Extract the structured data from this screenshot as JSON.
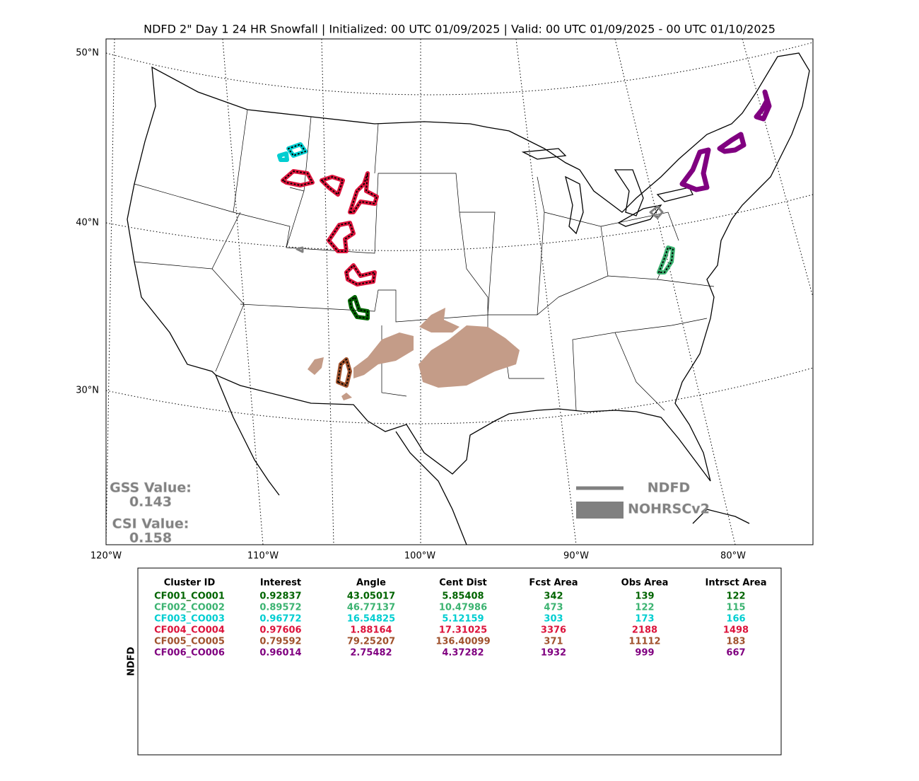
{
  "title": "NDFD 2\" Day 1 24 HR Snowfall | Initialized: 00 UTC 01/09/2025 | Valid: 00 UTC 01/09/2025 - 00 UTC 01/10/2025",
  "map": {
    "lat_labels": [
      "50°N",
      "40°N",
      "30°N"
    ],
    "lon_labels": [
      "120°W",
      "110°W",
      "100°W",
      "90°W",
      "80°W"
    ],
    "stats": {
      "gss_label": "GSS Value:",
      "gss_value": "0.143",
      "csi_label": "CSI Value:",
      "csi_value": "0.158"
    },
    "legend": [
      {
        "label": "NDFD",
        "color": "#808080"
      },
      {
        "label": "NOHRSCv2",
        "color": "#808080"
      }
    ]
  },
  "table": {
    "side_label": "NDFD",
    "header": [
      "Cluster ID",
      "Interest",
      "Angle",
      "Cent Dist",
      "Fcst Area",
      "Obs Area",
      "Intrsct Area"
    ],
    "rows": [
      {
        "color": "#006400",
        "cells": [
          "CF001_CO001",
          "0.92837",
          "43.05017",
          "5.85408",
          "342",
          "139",
          "122"
        ]
      },
      {
        "color": "#3cb371",
        "cells": [
          "CF002_CO002",
          "0.89572",
          "46.77137",
          "10.47986",
          "473",
          "122",
          "115"
        ]
      },
      {
        "color": "#00ced1",
        "cells": [
          "CF003_CO003",
          "0.96772",
          "16.54825",
          "5.12159",
          "303",
          "173",
          "166"
        ]
      },
      {
        "color": "#dc143c",
        "cells": [
          "CF004_CO004",
          "0.97606",
          "1.88164",
          "17.31025",
          "3376",
          "2188",
          "1498"
        ]
      },
      {
        "color": "#a0522d",
        "cells": [
          "CF005_CO005",
          "0.79592",
          "79.25207",
          "136.40099",
          "371",
          "11112",
          "183"
        ]
      },
      {
        "color": "#800080",
        "cells": [
          "CF006_CO006",
          "0.96014",
          "2.75482",
          "4.37282",
          "1932",
          "999",
          "667"
        ]
      }
    ]
  }
}
